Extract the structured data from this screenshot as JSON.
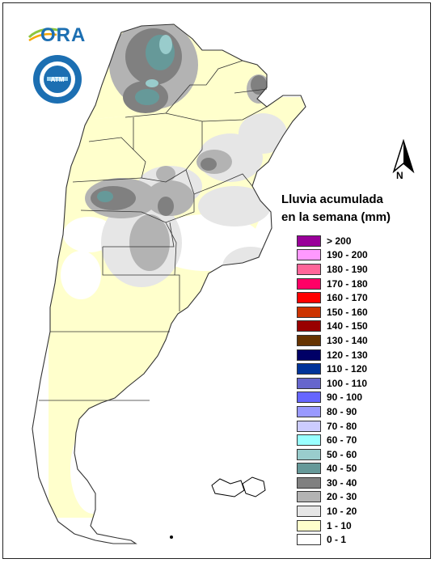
{
  "header": {
    "logo_text": "ORA",
    "smn_seal_text": "SERVICIO METEOROLÓGICO NACIONAL · ARGENTINA"
  },
  "north": {
    "label": "N"
  },
  "legend": {
    "title_line1": "Lluvia acumulada",
    "title_line2": "en la semana (mm)",
    "items": [
      {
        "label": "> 200",
        "color": "#990099"
      },
      {
        "label": "190 - 200",
        "color": "#ff99ff"
      },
      {
        "label": "180 - 190",
        "color": "#ff6699"
      },
      {
        "label": "170 - 180",
        "color": "#ff0066"
      },
      {
        "label": "160 - 170",
        "color": "#ff0000"
      },
      {
        "label": "150 - 160",
        "color": "#cc3300"
      },
      {
        "label": "140 - 150",
        "color": "#990000"
      },
      {
        "label": "130 - 140",
        "color": "#663300"
      },
      {
        "label": "120 - 130",
        "color": "#000066"
      },
      {
        "label": "110 - 120",
        "color": "#003399"
      },
      {
        "label": "100 - 110",
        "color": "#6666cc"
      },
      {
        "label": "90 - 100",
        "color": "#6666ff"
      },
      {
        "label": "80 - 90",
        "color": "#9999ff"
      },
      {
        "label": "70 - 80",
        "color": "#ccccff"
      },
      {
        "label": "60 - 70",
        "color": "#99ffff"
      },
      {
        "label": "50 - 60",
        "color": "#99cccc"
      },
      {
        "label": "40 - 50",
        "color": "#669999"
      },
      {
        "label": "30 - 40",
        "color": "#808080"
      },
      {
        "label": "20 - 30",
        "color": "#b3b3b3"
      },
      {
        "label": "10 - 20",
        "color": "#e6e6e6"
      },
      {
        "label": "1 - 10",
        "color": "#ffffcc"
      },
      {
        "label": "0 - 1",
        "color": "#ffffff"
      }
    ]
  }
}
